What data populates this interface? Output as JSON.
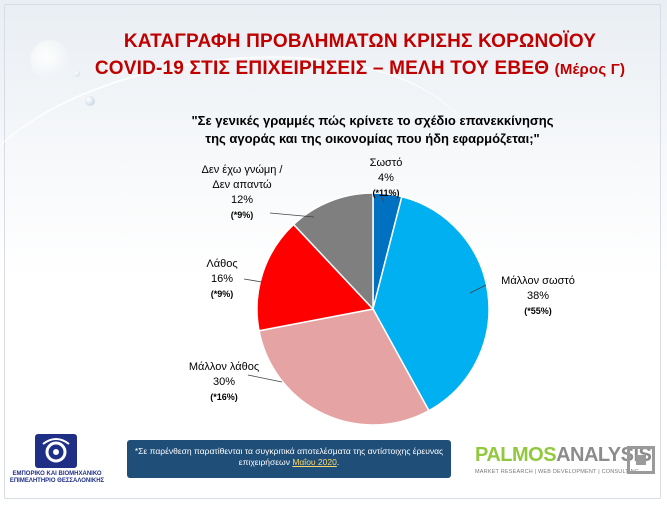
{
  "title": {
    "line1": "ΚΑΤΑΓΡΑΦΗ ΠΡΟΒΛΗΜΑΤΩΝ ΚΡΙΣΗΣ ΚΟΡΩΝΟΪΟΥ",
    "line2_main": "COVID-19 ΣΤΙΣ ΕΠΙΧΕΙΡΗΣΕΙΣ – ΜΕΛΗ ΤΟΥ ΕΒΕΘ",
    "line2_part": "(Μέρος Γ)"
  },
  "chart_data": {
    "type": "pie",
    "title": "\"Σε γενικές γραμμές πώς κρίνετε το σχέδιο επανεκκίνησης της αγοράς και της οικονομίας που ήδη εφαρμόζεται;\"",
    "title_line1": "\"Σε γενικές γραμμές πώς κρίνετε το σχέδιο επανεκκίνησης",
    "title_line2": "της αγοράς και της οικονομίας που ήδη εφαρμόζεται;\"",
    "start_angle_deg": 0,
    "direction": "clockwise",
    "slices": [
      {
        "label": "Σωστό",
        "value": 4,
        "value_label": "4%",
        "comparison": "(*11%)",
        "color": "#0070c0"
      },
      {
        "label": "Μάλλον σωστό",
        "value": 38,
        "value_label": "38%",
        "comparison": "(*55%)",
        "color": "#00b0f0"
      },
      {
        "label": "Μάλλον λάθος",
        "value": 30,
        "value_label": "30%",
        "comparison": "(*16%)",
        "color": "#e6a3a3"
      },
      {
        "label": "Λάθος",
        "value": 16,
        "value_label": "16%",
        "comparison": "(*9%)",
        "color": "#ff0000"
      },
      {
        "label_line1": "Δεν έχω γνώμη /",
        "label_line2": "Δεν απαντώ",
        "label": "Δεν έχω γνώμη / Δεν απαντώ",
        "value": 12,
        "value_label": "12%",
        "comparison": "(*9%)",
        "color": "#7f7f7f"
      }
    ]
  },
  "footnote": {
    "text_before": "*Σε παρένθεση παρατίθενται τα συγκριτικά αποτελέσματα της αντίστοιχης έρευνας επιχειρήσεων ",
    "month": "Μαΐου 2020",
    "text_after": "."
  },
  "logo_left": {
    "text": "ΕΜΠΟΡΙΚΟ ΚΑΙ ΒΙΟΜΗΧΑΝΙΚΟ ΕΠΙΜΕΛΗΤΗΡΙΟ ΘΕΣΣΑΛΟΝΙΚΗΣ"
  },
  "logo_right": {
    "word1": "PALMOS",
    "word2": "ANALYSIS",
    "tagline": "MARKET RESEARCH | WEB DEVELOPMENT | CONSULTING"
  }
}
